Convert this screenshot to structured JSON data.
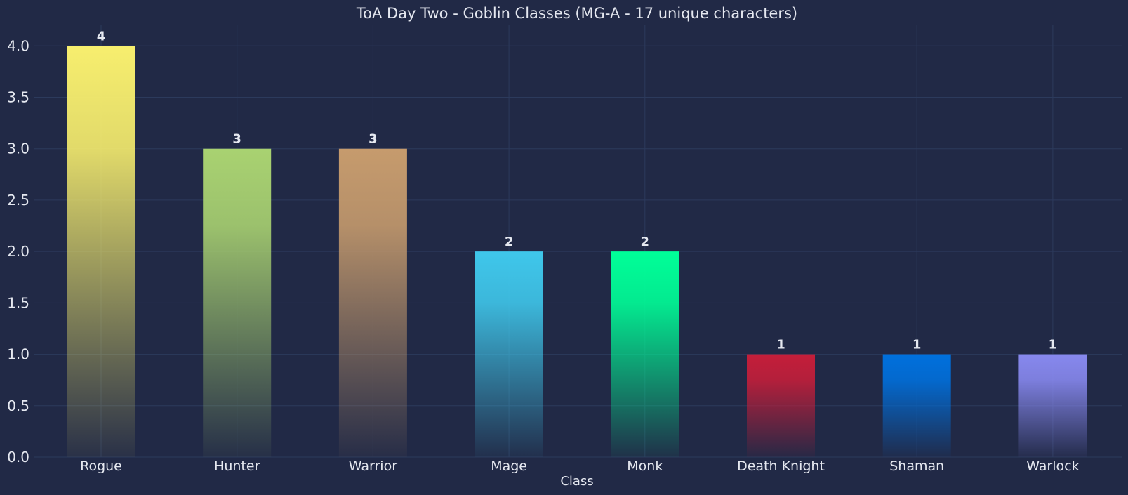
{
  "chart_data": {
    "type": "bar",
    "title": "ToA Day Two - Goblin Classes (MG-A - 17 unique characters)",
    "xlabel": "Class",
    "ylabel": "",
    "categories": [
      "Rogue",
      "Hunter",
      "Warrior",
      "Mage",
      "Monk",
      "Death Knight",
      "Shaman",
      "Warlock"
    ],
    "values": [
      4,
      3,
      3,
      2,
      2,
      1,
      1,
      1
    ],
    "colors": [
      "#f7ee6e",
      "#a9d271",
      "#c69b6d",
      "#3fc7eb",
      "#00ff98",
      "#c41e3a",
      "#0070dd",
      "#8788ee"
    ],
    "ylim": [
      0,
      4.2
    ],
    "yticks": [
      "0.0",
      "0.5",
      "1.0",
      "1.5",
      "2.0",
      "2.5",
      "3.0",
      "3.5",
      "4.0"
    ],
    "grid": true,
    "background": "#212946"
  }
}
